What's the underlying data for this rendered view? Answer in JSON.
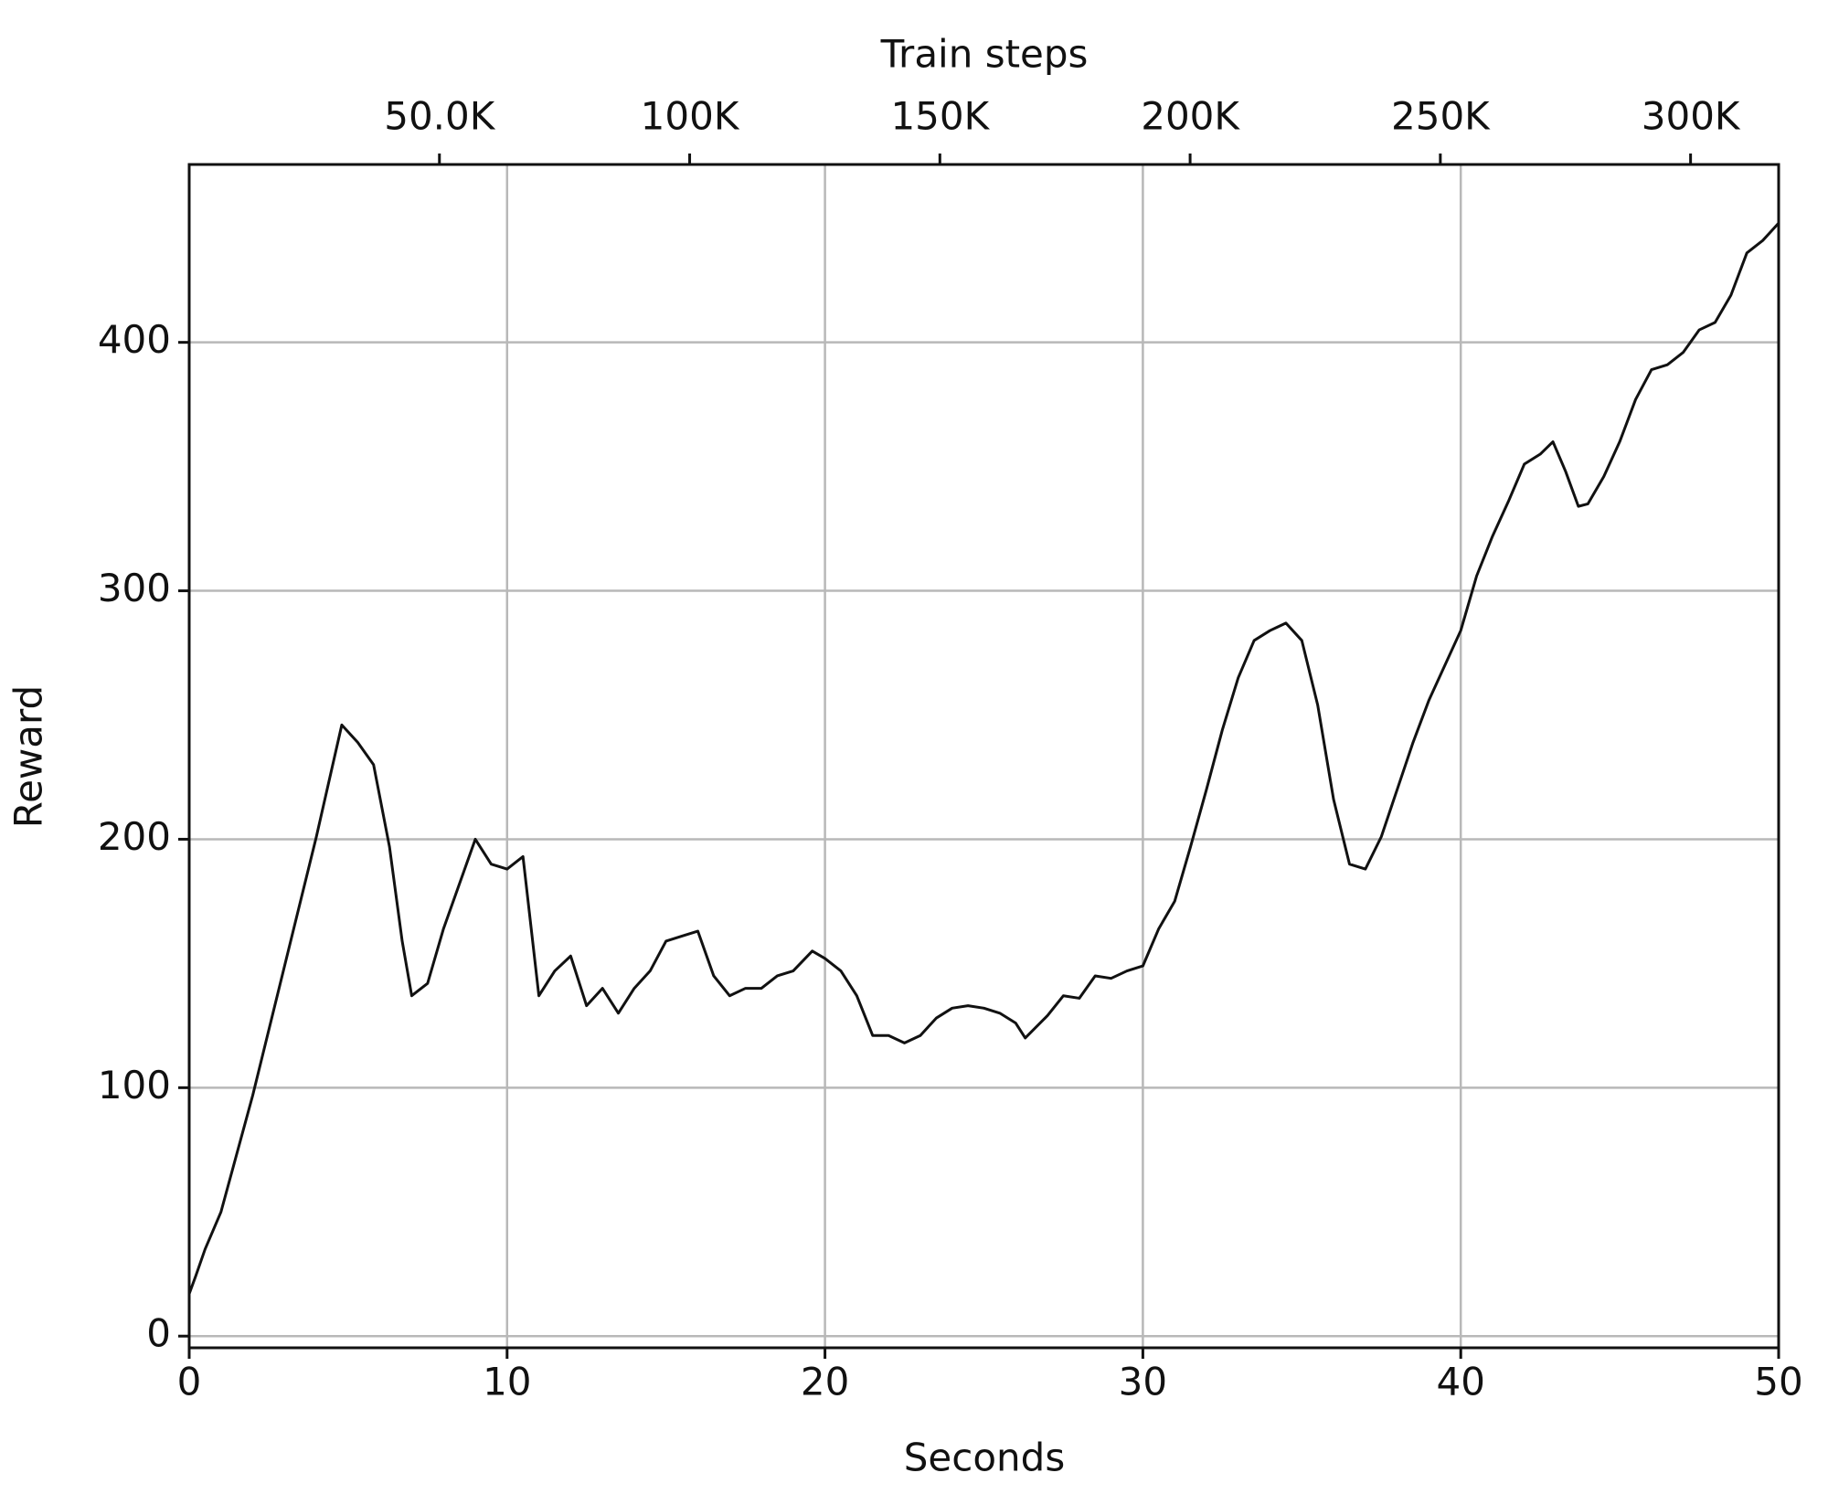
{
  "chart_data": {
    "type": "line",
    "x_label": "Seconds",
    "y_label": "Reward",
    "x2_label": "Train steps",
    "x": [
      0,
      0.2,
      0.5,
      1,
      2,
      3,
      4,
      4.8,
      5.3,
      5.8,
      6.3,
      6.7,
      7,
      7.5,
      8,
      8.5,
      9,
      9.5,
      10,
      10.5,
      11,
      11.5,
      12,
      12.5,
      13,
      13.5,
      14,
      14.5,
      15,
      15.5,
      16,
      16.5,
      17,
      17.5,
      18,
      18.5,
      19,
      19.6,
      20,
      20.5,
      21,
      21.5,
      22,
      22.5,
      23,
      23.5,
      24,
      24.5,
      25,
      25.5,
      26,
      26.3,
      27,
      27.5,
      28,
      28.5,
      29,
      29.5,
      30,
      30.5,
      31,
      31.5,
      32,
      32.5,
      33,
      33.5,
      34,
      34.5,
      35,
      35.5,
      36,
      36.5,
      37,
      37.5,
      38,
      38.5,
      39,
      39.5,
      40,
      40.5,
      41,
      41.5,
      42,
      42.5,
      42.9,
      43.3,
      43.7,
      44,
      44.5,
      45,
      45.5,
      46,
      46.5,
      47,
      47.5,
      48,
      48.5,
      49,
      49.5,
      50
    ],
    "series": [
      {
        "color": "#111111",
        "values": [
          17,
          24,
          35,
          50,
          97,
          149,
          201,
          246,
          239,
          230,
          197,
          159,
          137,
          142,
          164,
          182,
          200,
          190,
          188,
          193,
          137,
          147,
          153,
          133,
          140,
          130,
          140,
          147,
          159,
          161,
          163,
          145,
          137,
          140,
          140,
          145,
          147,
          155,
          152,
          147,
          137,
          121,
          121,
          118,
          121,
          128,
          132,
          133,
          132,
          130,
          126,
          120,
          129,
          137,
          136,
          145,
          144,
          147,
          149,
          164,
          175,
          197,
          220,
          244,
          265,
          280,
          284,
          287,
          280,
          254,
          216,
          190,
          188,
          201,
          220,
          239,
          256,
          270,
          284,
          306,
          322,
          336,
          351,
          355,
          360,
          348,
          334,
          335,
          346,
          360,
          377,
          389,
          391,
          396,
          405,
          408,
          419,
          436,
          441,
          448
        ]
      }
    ],
    "xlim": [
      0,
      50
    ],
    "xticks": [
      0,
      10,
      20,
      30,
      40,
      50
    ],
    "ylim": [
      -4.7,
      471.6
    ],
    "yticks": [
      0,
      100,
      200,
      300,
      400
    ],
    "x2lim": [
      0,
      317600
    ],
    "x2ticks": [
      {
        "value": 50000,
        "label": "50.0K"
      },
      {
        "value": 100000,
        "label": "100K"
      },
      {
        "value": 150000,
        "label": "150K"
      },
      {
        "value": 200000,
        "label": "200K"
      },
      {
        "value": 250000,
        "label": "250K"
      },
      {
        "value": 300000,
        "label": "300K"
      }
    ],
    "grid": true
  }
}
